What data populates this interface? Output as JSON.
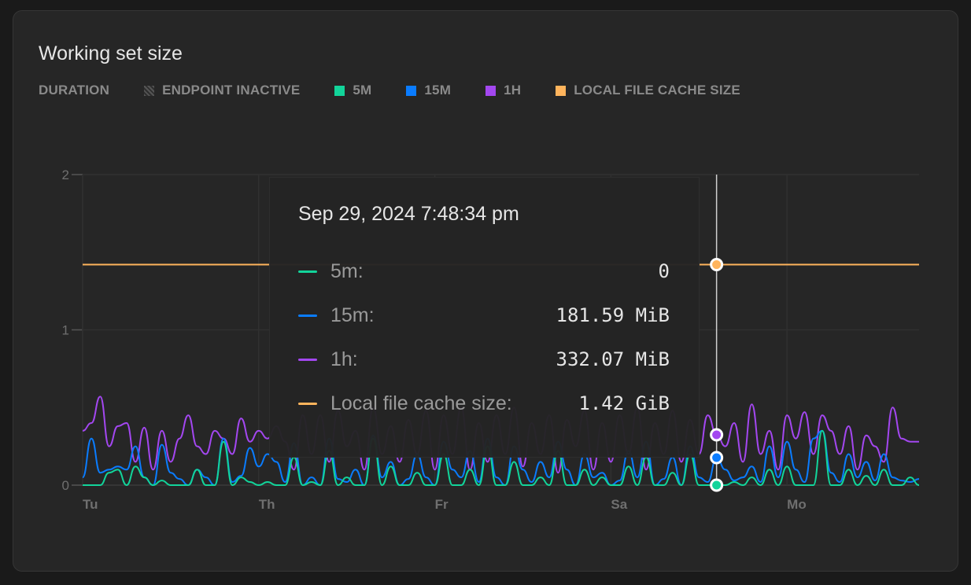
{
  "title": "Working set size",
  "legend": {
    "label": "DURATION",
    "items": [
      {
        "label": "ENDPOINT INACTIVE",
        "icon": "hatch-icon"
      },
      {
        "label": "5M",
        "color": "#12d49a"
      },
      {
        "label": "15M",
        "color": "#0a7cff"
      },
      {
        "label": "1H",
        "color": "#a347f0"
      },
      {
        "label": "LOCAL FILE CACHE SIZE",
        "color": "#ffb45c"
      }
    ]
  },
  "tooltip": {
    "date": "Sep 29, 2024 7:48:34 pm",
    "rows": [
      {
        "label": "5m:",
        "value": "0",
        "color": "#12d49a"
      },
      {
        "label": "15m:",
        "value": "181.59 MiB",
        "color": "#0a7cff"
      },
      {
        "label": "1h:",
        "value": "332.07 MiB",
        "color": "#a347f0"
      },
      {
        "label": "Local file cache size:",
        "value": "1.42 GiB",
        "color": "#ffb45c"
      }
    ]
  },
  "chart_data": {
    "type": "line",
    "ylim": [
      0,
      2
    ],
    "yticks": [
      "0",
      "1",
      "2"
    ],
    "ytick_values": [
      0,
      1,
      2
    ],
    "xlim": [
      0,
      95
    ],
    "xticks": [
      {
        "x": 0,
        "label": "Tu"
      },
      {
        "x": 20,
        "label": "Th"
      },
      {
        "x": 40,
        "label": "Fr"
      },
      {
        "x": 60,
        "label": "Sa"
      },
      {
        "x": 80,
        "label": "Mo"
      }
    ],
    "crosshair_x": 72,
    "grid": true,
    "unit": "GiB",
    "series": [
      {
        "name": "5m",
        "color": "#12d49a",
        "values": [
          0,
          0,
          0,
          0.08,
          0.1,
          0,
          0.12,
          0.05,
          0,
          0.03,
          0,
          0,
          0,
          0.1,
          0,
          0,
          0.28,
          0,
          0.05,
          0.02,
          0,
          0.02,
          0,
          0,
          0.18,
          0,
          0.02,
          0,
          0.22,
          0,
          0.05,
          0,
          0,
          0.3,
          0,
          0.12,
          0,
          0,
          0.08,
          0,
          0,
          0.2,
          0,
          0,
          0.1,
          0,
          0.25,
          0,
          0,
          0.15,
          0,
          0,
          0.05,
          0,
          0.22,
          0,
          0,
          0.1,
          0,
          0.05,
          0,
          0,
          0.12,
          0,
          0.18,
          0,
          0,
          0.08,
          0,
          0.2,
          0,
          0,
          0,
          0,
          0.02,
          0,
          0.05,
          0,
          0.1,
          0,
          0.12,
          0,
          0,
          0,
          0.35,
          0,
          0,
          0.1,
          0,
          0.06,
          0,
          0.1,
          0,
          0,
          0.05,
          0
        ]
      },
      {
        "name": "15m",
        "color": "#0a7cff",
        "values": [
          0.05,
          0.3,
          0.08,
          0.1,
          0.12,
          0.1,
          0.25,
          0.05,
          0,
          0.26,
          0.08,
          0.04,
          0,
          0.1,
          0.05,
          0,
          0.3,
          0.02,
          0.06,
          0.24,
          0.12,
          0.2,
          0.15,
          0.02,
          0.27,
          0,
          0.05,
          0,
          0.3,
          0.04,
          0.02,
          0.1,
          0,
          0.32,
          0.05,
          0.15,
          0,
          0.04,
          0.2,
          0.05,
          0,
          0.28,
          0.1,
          0.05,
          0.22,
          0.02,
          0.3,
          0.05,
          0,
          0.25,
          0.1,
          0.02,
          0.15,
          0.05,
          0.28,
          0.1,
          0,
          0.2,
          0.05,
          0.08,
          0,
          0.03,
          0.22,
          0.05,
          0.28,
          0,
          0.04,
          0.18,
          0,
          0.25,
          0.05,
          0.02,
          0.177,
          0.1,
          0.03,
          0.05,
          0.12,
          0.02,
          0.25,
          0.05,
          0.28,
          0.1,
          0.02,
          0.3,
          0.35,
          0.08,
          0.02,
          0.2,
          0.05,
          0.15,
          0.03,
          0.2,
          0.05,
          0.03,
          0.02,
          0.04
        ]
      },
      {
        "name": "1h",
        "color": "#a347f0",
        "values": [
          0.35,
          0.4,
          0.57,
          0.25,
          0.38,
          0.4,
          0.15,
          0.37,
          0.1,
          0.35,
          0.15,
          0.3,
          0.45,
          0.25,
          0.2,
          0.35,
          0.3,
          0.2,
          0.43,
          0.28,
          0.35,
          0.3,
          0.38,
          0.28,
          0.1,
          0.45,
          0.2,
          0.45,
          0.15,
          0.48,
          0.25,
          0.35,
          0.1,
          0.5,
          0.2,
          0.38,
          0.15,
          0.42,
          0.2,
          0.48,
          0.1,
          0.45,
          0.2,
          0.5,
          0.1,
          0.4,
          0.15,
          0.45,
          0.2,
          0.5,
          0.12,
          0.4,
          0.2,
          0.45,
          0.08,
          0.42,
          0.25,
          0.48,
          0.1,
          0.4,
          0.15,
          0.45,
          0.2,
          0.5,
          0.1,
          0.4,
          0.2,
          0.48,
          0.15,
          0.42,
          0.2,
          0.45,
          0.324,
          0.25,
          0.4,
          0.15,
          0.52,
          0.2,
          0.35,
          0.1,
          0.45,
          0.3,
          0.47,
          0.2,
          0.45,
          0.35,
          0.2,
          0.38,
          0.1,
          0.32,
          0.25,
          0.15,
          0.5,
          0.3,
          0.28,
          0.28
        ]
      },
      {
        "name": "Local file cache size",
        "color": "#ffb45c",
        "constant": 1.42
      }
    ]
  }
}
